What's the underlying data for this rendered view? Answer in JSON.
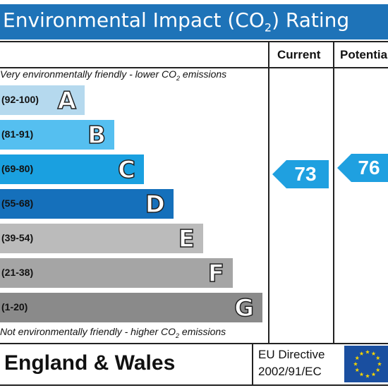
{
  "title": {
    "prefix": "Environmental Impact (CO",
    "sub": "2",
    "suffix": ") Rating"
  },
  "columns": {
    "current": "Current",
    "potential": "Potentia"
  },
  "notes": {
    "top_prefix": "Very environmentally friendly - lower CO",
    "top_sub": "2",
    "top_suffix": " emissions",
    "bottom_prefix": "Not environmentally friendly - higher CO",
    "bottom_sub": "2",
    "bottom_suffix": " emissions"
  },
  "footer": {
    "country": "England & Wales",
    "directive_line1": "EU Directive",
    "directive_line2": "2002/91/EC"
  },
  "colors": {
    "title_bar": "#1e73b8",
    "eu_flag": "#1a4fa0",
    "eu_star": "#f5d400",
    "arrow": "#1fa0e0"
  },
  "chart_data": {
    "type": "bar",
    "bands": [
      {
        "letter": "A",
        "range": "(92-100)",
        "color": "#b5d9ee"
      },
      {
        "letter": "B",
        "range": "(81-91)",
        "color": "#55bff0"
      },
      {
        "letter": "C",
        "range": "(69-80)",
        "color": "#1aa0e0"
      },
      {
        "letter": "D",
        "range": "(55-68)",
        "color": "#1570bb"
      },
      {
        "letter": "E",
        "range": "(39-54)",
        "color": "#bbbbbb"
      },
      {
        "letter": "F",
        "range": "(21-38)",
        "color": "#a5a5a5"
      },
      {
        "letter": "G",
        "range": "(1-20)",
        "color": "#8a8a8a"
      }
    ],
    "current": 73,
    "potential": 76
  }
}
